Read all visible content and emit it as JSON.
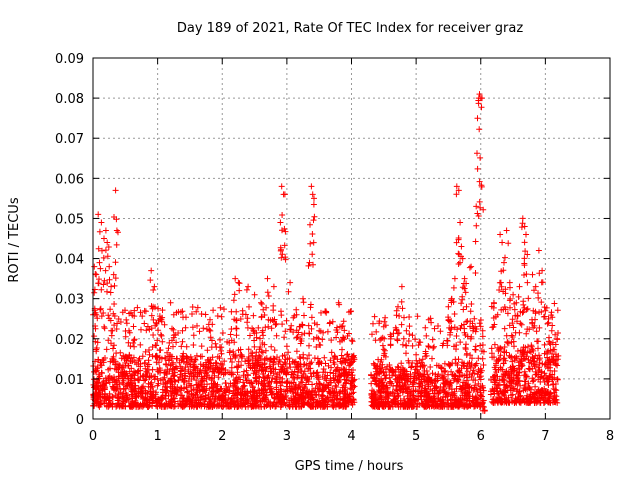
{
  "chart_data": {
    "type": "scatter",
    "title": "Day 189 of 2021, Rate Of TEC Index for receiver graz",
    "xlabel": "GPS time / hours",
    "ylabel": "ROTI / TECUs",
    "xlim": [
      0,
      8
    ],
    "ylim": [
      0,
      0.09
    ],
    "x_ticks": [
      "0",
      "1",
      "2",
      "3",
      "4",
      "5",
      "6",
      "7",
      "8"
    ],
    "y_ticks": [
      "0",
      "0.01",
      "0.02",
      "0.03",
      "0.04",
      "0.05",
      "0.06",
      "0.07",
      "0.08",
      "0.09"
    ],
    "grid": true,
    "marker": "+",
    "color": "#ff0000",
    "series": [
      {
        "name": "ROTI",
        "notes": "dense points: baseline 0.003-0.015 TECU, continuous coverage 0-4.05 h and 4.3-7.2 h, gap 4.05-4.3 h",
        "baseline_segments": [
          {
            "x_start": 0.0,
            "x_end": 4.05,
            "y_min": 0.003,
            "y_max": 0.016
          },
          {
            "x_start": 4.3,
            "x_end": 6.05,
            "y_min": 0.003,
            "y_max": 0.014
          },
          {
            "x_start": 6.15,
            "x_end": 7.2,
            "y_min": 0.004,
            "y_max": 0.018
          }
        ],
        "peaks": [
          {
            "x": 0.02,
            "y": 0.038
          },
          {
            "x": 0.05,
            "y": 0.036
          },
          {
            "x": 0.08,
            "y": 0.051
          },
          {
            "x": 0.1,
            "y": 0.039
          },
          {
            "x": 0.13,
            "y": 0.049
          },
          {
            "x": 0.17,
            "y": 0.045
          },
          {
            "x": 0.2,
            "y": 0.047
          },
          {
            "x": 0.22,
            "y": 0.044
          },
          {
            "x": 0.25,
            "y": 0.038
          },
          {
            "x": 0.28,
            "y": 0.033
          },
          {
            "x": 0.32,
            "y": 0.036
          },
          {
            "x": 0.35,
            "y": 0.057
          },
          {
            "x": 0.37,
            "y": 0.047
          },
          {
            "x": 0.05,
            "y": 0.026
          },
          {
            "x": 0.3,
            "y": 0.022
          },
          {
            "x": 0.9,
            "y": 0.037
          },
          {
            "x": 0.93,
            "y": 0.028
          },
          {
            "x": 0.95,
            "y": 0.033
          },
          {
            "x": 0.98,
            "y": 0.024
          },
          {
            "x": 1.05,
            "y": 0.021
          },
          {
            "x": 1.2,
            "y": 0.029
          },
          {
            "x": 1.25,
            "y": 0.026
          },
          {
            "x": 1.45,
            "y": 0.018
          },
          {
            "x": 2.2,
            "y": 0.035
          },
          {
            "x": 2.25,
            "y": 0.034
          },
          {
            "x": 2.4,
            "y": 0.033
          },
          {
            "x": 2.5,
            "y": 0.031
          },
          {
            "x": 2.6,
            "y": 0.029
          },
          {
            "x": 2.7,
            "y": 0.035
          },
          {
            "x": 2.8,
            "y": 0.033
          },
          {
            "x": 2.9,
            "y": 0.049
          },
          {
            "x": 2.92,
            "y": 0.058
          },
          {
            "x": 2.95,
            "y": 0.056
          },
          {
            "x": 2.97,
            "y": 0.056
          },
          {
            "x": 3.05,
            "y": 0.034
          },
          {
            "x": 3.15,
            "y": 0.026
          },
          {
            "x": 3.25,
            "y": 0.03
          },
          {
            "x": 3.35,
            "y": 0.039
          },
          {
            "x": 3.38,
            "y": 0.058
          },
          {
            "x": 3.4,
            "y": 0.056
          },
          {
            "x": 3.42,
            "y": 0.055
          },
          {
            "x": 3.5,
            "y": 0.022
          },
          {
            "x": 3.8,
            "y": 0.029
          },
          {
            "x": 3.85,
            "y": 0.023
          },
          {
            "x": 4.0,
            "y": 0.015
          },
          {
            "x": 4.5,
            "y": 0.023
          },
          {
            "x": 4.6,
            "y": 0.021
          },
          {
            "x": 4.7,
            "y": 0.027
          },
          {
            "x": 4.72,
            "y": 0.028
          },
          {
            "x": 4.78,
            "y": 0.033
          },
          {
            "x": 4.85,
            "y": 0.022
          },
          {
            "x": 5.0,
            "y": 0.016
          },
          {
            "x": 5.5,
            "y": 0.028
          },
          {
            "x": 5.55,
            "y": 0.03
          },
          {
            "x": 5.6,
            "y": 0.035
          },
          {
            "x": 5.63,
            "y": 0.058
          },
          {
            "x": 5.66,
            "y": 0.057
          },
          {
            "x": 5.68,
            "y": 0.049
          },
          {
            "x": 5.7,
            "y": 0.043
          },
          {
            "x": 5.72,
            "y": 0.04
          },
          {
            "x": 5.75,
            "y": 0.035
          },
          {
            "x": 5.78,
            "y": 0.028
          },
          {
            "x": 5.85,
            "y": 0.038
          },
          {
            "x": 5.9,
            "y": 0.025
          },
          {
            "x": 5.93,
            "y": 0.053
          },
          {
            "x": 5.95,
            "y": 0.075
          },
          {
            "x": 5.97,
            "y": 0.08
          },
          {
            "x": 5.98,
            "y": 0.081
          },
          {
            "x": 6.0,
            "y": 0.08
          },
          {
            "x": 6.02,
            "y": 0.08
          },
          {
            "x": 6.03,
            "y": 0.022
          },
          {
            "x": 6.05,
            "y": 0.003
          },
          {
            "x": 6.3,
            "y": 0.046
          },
          {
            "x": 6.33,
            "y": 0.044
          },
          {
            "x": 6.36,
            "y": 0.039
          },
          {
            "x": 6.4,
            "y": 0.047
          },
          {
            "x": 6.45,
            "y": 0.034
          },
          {
            "x": 6.5,
            "y": 0.031
          },
          {
            "x": 6.55,
            "y": 0.029
          },
          {
            "x": 6.6,
            "y": 0.033
          },
          {
            "x": 6.65,
            "y": 0.05
          },
          {
            "x": 6.68,
            "y": 0.048
          },
          {
            "x": 6.7,
            "y": 0.046
          },
          {
            "x": 6.72,
            "y": 0.041
          },
          {
            "x": 6.8,
            "y": 0.036
          },
          {
            "x": 6.85,
            "y": 0.033
          },
          {
            "x": 6.9,
            "y": 0.042
          },
          {
            "x": 6.95,
            "y": 0.037
          },
          {
            "x": 7.0,
            "y": 0.027
          },
          {
            "x": 7.05,
            "y": 0.024
          },
          {
            "x": 7.1,
            "y": 0.022
          },
          {
            "x": 7.15,
            "y": 0.021
          },
          {
            "x": 7.18,
            "y": 0.02
          }
        ]
      }
    ]
  }
}
